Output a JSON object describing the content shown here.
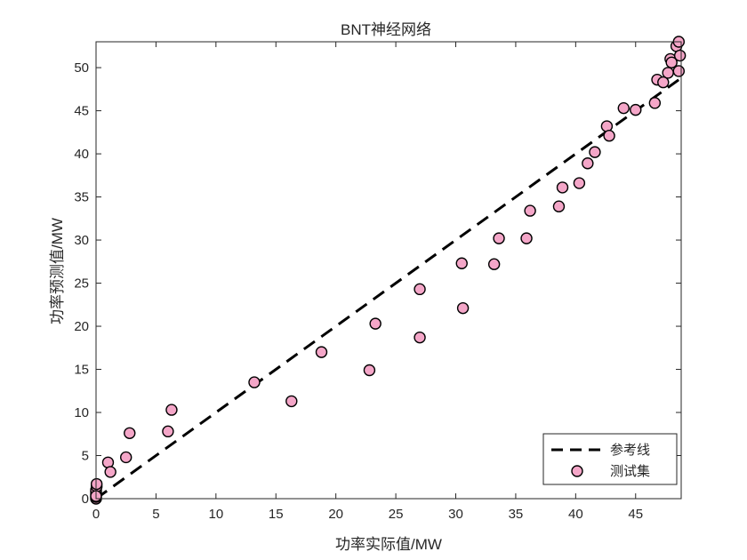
{
  "chart_data": {
    "type": "scatter",
    "title": "BNT神经网络",
    "xlabel": "功率实际值/MW",
    "ylabel": "功率预测值/MW",
    "xlim": [
      0,
      48.8
    ],
    "ylim": [
      0,
      53
    ],
    "xticks": [
      0,
      5,
      10,
      15,
      20,
      25,
      30,
      35,
      40,
      45
    ],
    "yticks": [
      0,
      5,
      10,
      15,
      20,
      25,
      30,
      35,
      40,
      45,
      50
    ],
    "grid": false,
    "legend_position": "bottom-right",
    "series": [
      {
        "name": "参考线",
        "kind": "line",
        "style": "dashed",
        "color": "#000000",
        "points": [
          [
            0,
            0
          ],
          [
            48.8,
            48.8
          ]
        ]
      },
      {
        "name": "测试集",
        "kind": "scatter",
        "color": "#f4a6c8",
        "edge_color": "#000000",
        "points": [
          [
            0,
            0
          ],
          [
            0,
            0.2
          ],
          [
            0,
            0.5
          ],
          [
            0,
            0.8
          ],
          [
            0,
            1.0
          ],
          [
            0.05,
            1.4
          ],
          [
            0.05,
            1.7
          ],
          [
            0,
            0.3
          ],
          [
            1.0,
            4.2
          ],
          [
            1.2,
            3.1
          ],
          [
            2.5,
            4.8
          ],
          [
            2.8,
            7.6
          ],
          [
            6.0,
            7.8
          ],
          [
            6.3,
            10.3
          ],
          [
            13.2,
            13.5
          ],
          [
            16.3,
            11.3
          ],
          [
            18.8,
            17.0
          ],
          [
            22.8,
            14.9
          ],
          [
            23.3,
            20.3
          ],
          [
            27.0,
            24.3
          ],
          [
            27.0,
            18.7
          ],
          [
            30.5,
            27.3
          ],
          [
            30.6,
            22.1
          ],
          [
            33.2,
            27.2
          ],
          [
            33.6,
            30.2
          ],
          [
            35.9,
            30.2
          ],
          [
            36.2,
            33.4
          ],
          [
            38.6,
            33.9
          ],
          [
            38.9,
            36.1
          ],
          [
            40.3,
            36.6
          ],
          [
            41.0,
            38.9
          ],
          [
            41.6,
            40.2
          ],
          [
            42.6,
            43.2
          ],
          [
            42.8,
            42.1
          ],
          [
            44.0,
            45.3
          ],
          [
            45.0,
            45.1
          ],
          [
            46.6,
            45.9
          ],
          [
            46.8,
            48.6
          ],
          [
            47.3,
            48.3
          ],
          [
            47.7,
            49.4
          ],
          [
            47.9,
            51.0
          ],
          [
            48.0,
            50.6
          ],
          [
            48.4,
            52.5
          ],
          [
            48.6,
            53.0
          ],
          [
            48.7,
            51.4
          ],
          [
            48.6,
            49.6
          ]
        ]
      }
    ]
  }
}
